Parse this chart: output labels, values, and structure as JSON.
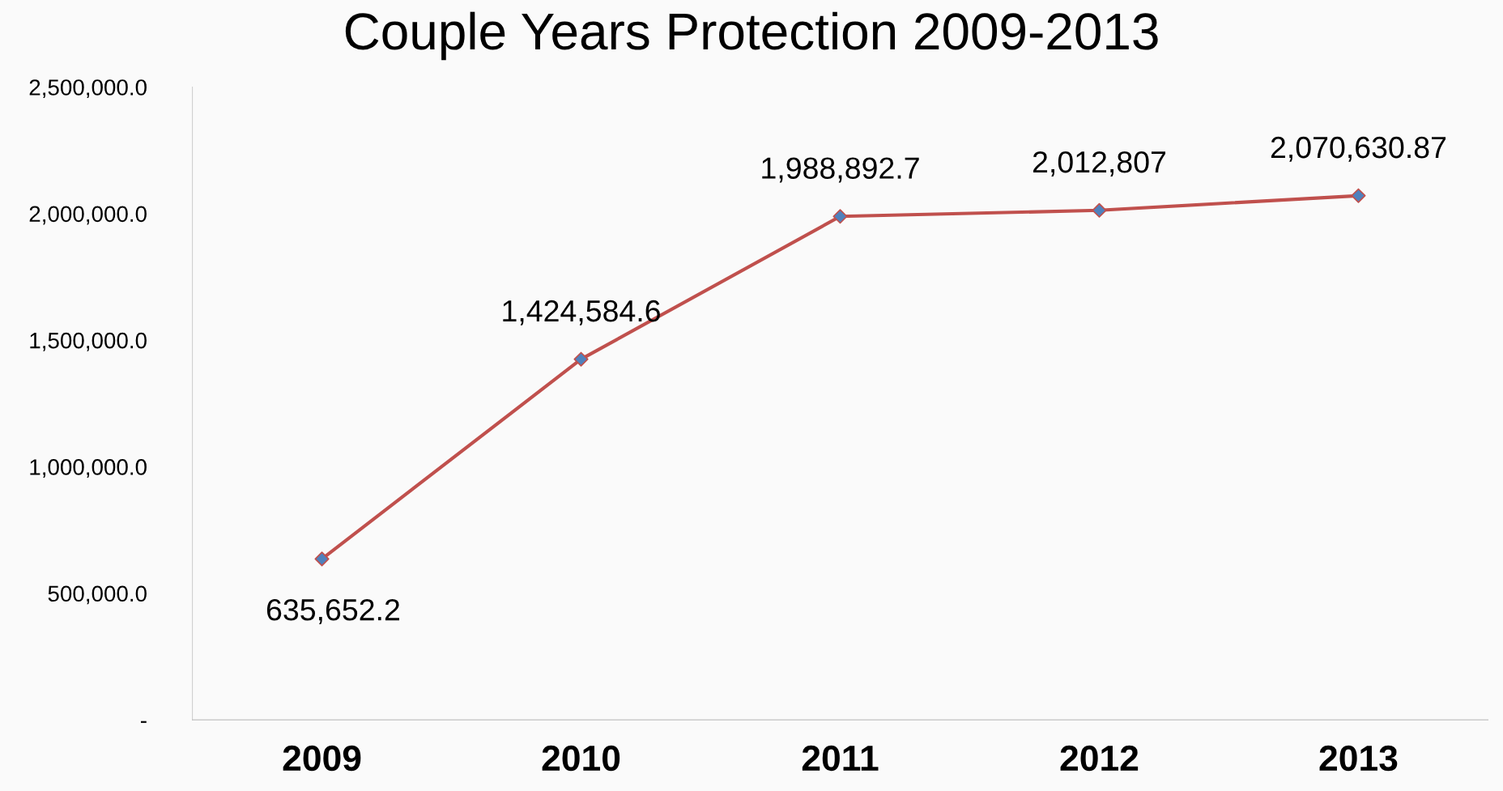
{
  "chart_data": {
    "type": "line",
    "title": "Couple Years Protection 2009-2013",
    "categories": [
      "2009",
      "2010",
      "2011",
      "2012",
      "2013"
    ],
    "series": [
      {
        "color": "#c0504d",
        "colors": [
          "#4f81bd",
          "#4f81bd",
          "#4f81bd",
          "#4f81bd",
          "#4f81bd"
        ],
        "values": [
          635652.2,
          1424584.6,
          1988892.7,
          2012807,
          2070630.87
        ],
        "value_labels": [
          "635,652.2",
          "1,424,584.6",
          "1,988,892.7",
          "2,012,807",
          "2,070,630.87"
        ]
      }
    ],
    "ylim": [
      0,
      2500000
    ],
    "yticks": [
      {
        "value": 0,
        "label": "-"
      },
      {
        "value": 500000,
        "label": "500,000.0"
      },
      {
        "value": 1000000,
        "label": "1,000,000.0"
      },
      {
        "value": 1500000,
        "label": "1,500,000.0"
      },
      {
        "value": 2000000,
        "label": "2,000,000.0"
      },
      {
        "value": 2500000,
        "label": "2,500,000.0"
      }
    ],
    "marker": "diamond",
    "line_style": "solid",
    "grid": false,
    "legend": false
  }
}
